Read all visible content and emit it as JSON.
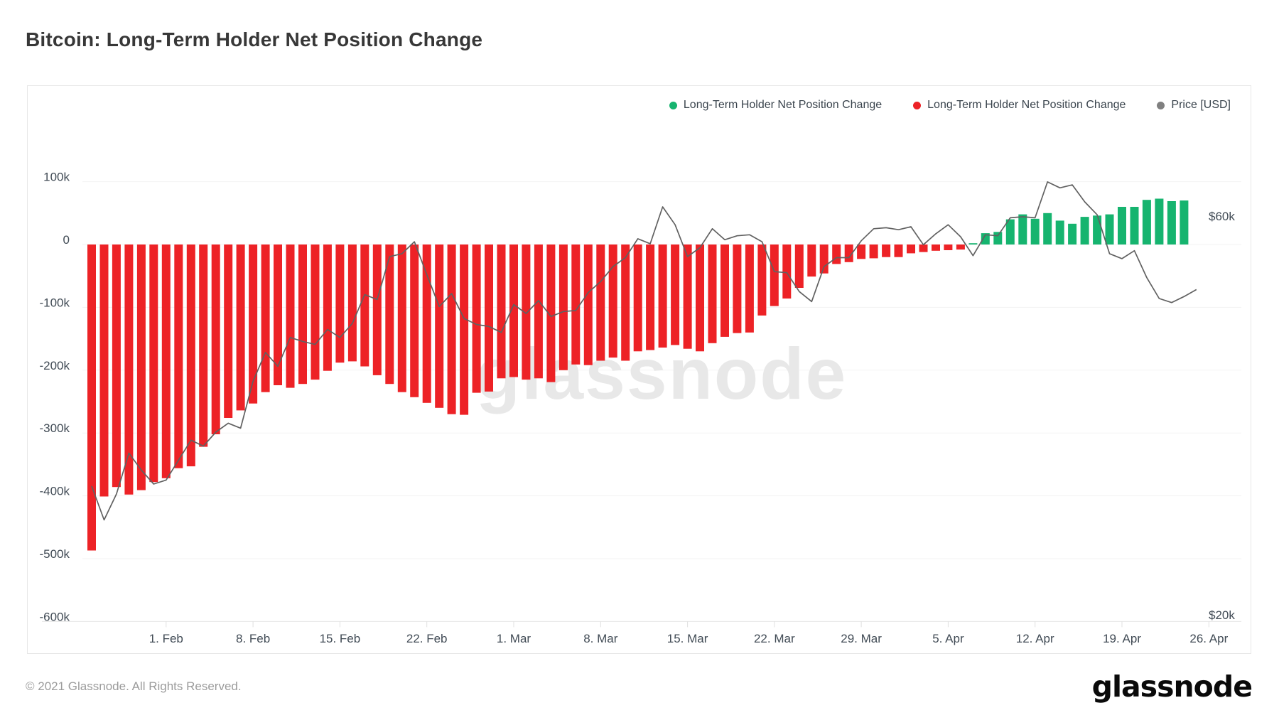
{
  "page": {
    "title": "Bitcoin: Long-Term Holder Net Position Change",
    "footer": "© 2021 Glassnode. All Rights Reserved.",
    "brand": "glassnode"
  },
  "legend": [
    {
      "label": "Long-Term Holder Net Position Change",
      "color": "#16b46f"
    },
    {
      "label": "Long-Term Holder Net Position Change",
      "color": "#ed2226"
    },
    {
      "label": "Price [USD]",
      "color": "#808080"
    }
  ],
  "chart_data": {
    "type": "bar+line",
    "title": "Bitcoin: Long-Term Holder Net Position Change",
    "watermark": "glassnode",
    "colors": {
      "grid": "#f3f3f3",
      "axis_line": "#e6e6e6",
      "tick": "#e0e0e0",
      "label": "#414b55",
      "watermark": "#e8e8e8"
    },
    "y_axis": {
      "labels": [
        "100k",
        "0",
        "-100k",
        "-200k",
        "-300k",
        "-400k",
        "-500k",
        "-600k"
      ],
      "values_k": [
        100,
        0,
        -100,
        -200,
        -300,
        -400,
        -500,
        -600
      ],
      "range_k": [
        -620,
        130
      ]
    },
    "x_axis": {
      "tick_labels": [
        "1. Feb",
        "8. Feb",
        "15. Feb",
        "22. Feb",
        "1. Mar",
        "8. Mar",
        "15. Mar",
        "22. Mar",
        "29. Mar",
        "5. Apr",
        "12. Apr",
        "19. Apr",
        "26. Apr"
      ],
      "first_tick_point_index": 6,
      "points_per_tick": 7
    },
    "right_axis": {
      "labels": [
        "$60k",
        "$20k"
      ],
      "values_kusd": [
        60,
        20
      ]
    },
    "bars": {
      "name": "Long-Term Holder Net Position Change",
      "unit": "BTC, thousands",
      "positive_color": "#16b46f",
      "negative_color": "#ed2226",
      "values_k": [
        -487,
        -401,
        -386,
        -398,
        -391,
        -378,
        -372,
        -356,
        -353,
        -322,
        -302,
        -276,
        -264,
        -253,
        -235,
        -224,
        -228,
        -222,
        -215,
        -201,
        -188,
        -186,
        -194,
        -208,
        -222,
        -235,
        -243,
        -252,
        -260,
        -270,
        -271,
        -236,
        -234,
        -213,
        -211,
        -215,
        -213,
        -219,
        -200,
        -191,
        -192,
        -185,
        -180,
        -185,
        -170,
        -168,
        -164,
        -160,
        -166,
        -170,
        -157,
        -147,
        -141,
        -140,
        -113,
        -98,
        -86,
        -69,
        -51,
        -46,
        -31,
        -28,
        -23,
        -22,
        -20,
        -20,
        -14,
        -12,
        -10,
        -9,
        -8,
        2,
        18,
        20,
        40,
        48,
        41,
        50,
        38,
        33,
        44,
        46,
        48,
        60,
        60,
        71,
        73,
        69,
        70
      ]
    },
    "price": {
      "name": "Price [USD]",
      "unit": "USD, thousands",
      "color": "#616161",
      "values_kusd": [
        33.0,
        29.6,
        32.2,
        36.3,
        34.6,
        33.2,
        33.6,
        35.6,
        37.6,
        37.0,
        38.4,
        39.3,
        38.8,
        43.5,
        46.4,
        45.0,
        47.9,
        47.5,
        47.2,
        48.7,
        47.9,
        49.3,
        52.2,
        51.7,
        56.0,
        56.3,
        57.5,
        54.2,
        51.0,
        52.3,
        49.8,
        49.2,
        49.0,
        48.4,
        51.2,
        50.3,
        51.6,
        50.0,
        50.5,
        50.6,
        52.4,
        53.5,
        55.0,
        55.9,
        57.8,
        57.3,
        61.0,
        59.2,
        56.0,
        56.9,
        58.8,
        57.7,
        58.1,
        58.2,
        57.5,
        54.5,
        54.4,
        52.5,
        51.5,
        55.0,
        55.9,
        55.9,
        57.6,
        58.8,
        58.9,
        58.7,
        59.0,
        57.2,
        58.3,
        59.2,
        58.0,
        56.1,
        58.2,
        58.1,
        59.9,
        60.0,
        59.9,
        63.5,
        62.9,
        63.2,
        61.5,
        60.2,
        56.3,
        55.8,
        56.6,
        53.9,
        51.8,
        51.4,
        52.0,
        52.7
      ]
    }
  }
}
